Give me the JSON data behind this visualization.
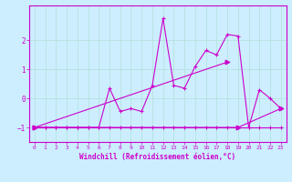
{
  "xlabel": "Windchill (Refroidissement éolien,°C)",
  "bg_color": "#cceeff",
  "grid_color": "#aaddcc",
  "line_color": "#cc00cc",
  "xlim": [
    -0.5,
    23.5
  ],
  "ylim": [
    -1.5,
    3.2
  ],
  "yticks": [
    -1,
    0,
    1,
    2
  ],
  "xticks": [
    0,
    1,
    2,
    3,
    4,
    5,
    6,
    7,
    8,
    9,
    10,
    11,
    12,
    13,
    14,
    15,
    16,
    17,
    18,
    19,
    20,
    21,
    22,
    23
  ],
  "line1_x": [
    0,
    1,
    2,
    3,
    4,
    5,
    6,
    7,
    8,
    9,
    10,
    11,
    12,
    13,
    14,
    15,
    16,
    17,
    18,
    19,
    20,
    21,
    22,
    23
  ],
  "line1_y": [
    -1,
    -1,
    -1,
    -1,
    -1,
    -1,
    -1,
    0.35,
    -0.45,
    -0.35,
    -0.45,
    0.45,
    2.75,
    0.45,
    0.35,
    1.1,
    1.65,
    1.5,
    2.2,
    2.15,
    -1.0,
    0.3,
    0.0,
    -0.35
  ],
  "line2_x": [
    0,
    1,
    2,
    3,
    4,
    5,
    6,
    7,
    8,
    9,
    10,
    11,
    12,
    13,
    14,
    15,
    16,
    17,
    18,
    19,
    20,
    21,
    22,
    23
  ],
  "line2_y": [
    -1,
    -1,
    -1,
    -1,
    -1,
    -1,
    -1,
    -1,
    -1,
    -1,
    -1,
    -1,
    -1,
    -1,
    -1,
    -1,
    -1,
    -1,
    -1,
    -1,
    -1,
    -1,
    -1,
    -1
  ],
  "line3_x": [
    0,
    18
  ],
  "line3_y": [
    -1,
    1.25
  ],
  "line4_x": [
    0,
    19,
    23
  ],
  "line4_y": [
    -1,
    -1,
    -0.35
  ]
}
